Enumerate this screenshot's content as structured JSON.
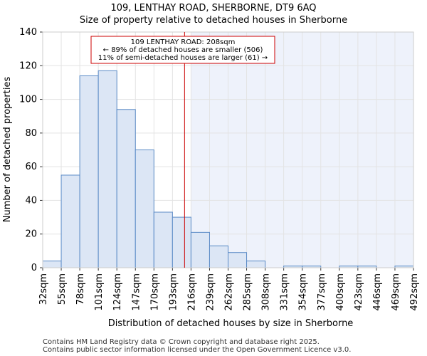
{
  "chart_data": {
    "type": "bar",
    "title": "109, LENTHAY ROAD, SHERBORNE, DT9 6AQ",
    "subtitle": "Size of property relative to detached houses in Sherborne",
    "xlabel": "Distribution of detached houses by size in Sherborne",
    "ylabel": "Number of detached properties",
    "ylim": [
      0,
      140
    ],
    "yticks": [
      0,
      20,
      40,
      60,
      80,
      100,
      120,
      140
    ],
    "tick_labels": [
      "32sqm",
      "55sqm",
      "78sqm",
      "101sqm",
      "124sqm",
      "147sqm",
      "170sqm",
      "193sqm",
      "216sqm",
      "239sqm",
      "262sqm",
      "285sqm",
      "308sqm",
      "331sqm",
      "354sqm",
      "377sqm",
      "400sqm",
      "423sqm",
      "446sqm",
      "469sqm",
      "492sqm"
    ],
    "values": [
      4,
      55,
      114,
      117,
      94,
      70,
      33,
      30,
      21,
      13,
      9,
      4,
      0,
      1,
      1,
      0,
      1,
      1,
      0,
      1
    ],
    "bar_color": "#dce6f5",
    "bar_edge_color": "#5a8ac6",
    "highlight_background": "#eef2fb",
    "property_line": {
      "value": 208,
      "color": "#cc0000",
      "annotation": [
        "109 LENTHAY ROAD: 208sqm",
        "← 89% of detached houses are smaller (506)",
        "11% of semi-detached houses are larger (61) →"
      ]
    },
    "grid": true
  },
  "footer": {
    "line1": "Contains HM Land Registry data © Crown copyright and database right 2025.",
    "line2": "Contains public sector information licensed under the Open Government Licence v3.0."
  }
}
